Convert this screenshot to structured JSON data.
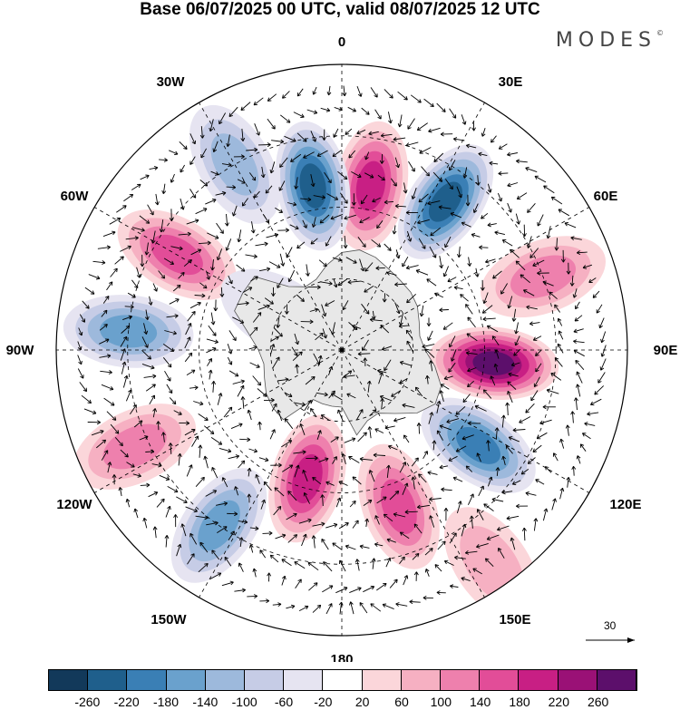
{
  "header": {
    "title": "Base 06/07/2025 00 UTC, valid 08/07/2025 12 UTC",
    "brand": "MODES",
    "brand_mark": "©"
  },
  "map": {
    "projection": "south-polar-stereographic",
    "meridian_labels": [
      "0",
      "30E",
      "60E",
      "90E",
      "120E",
      "150E",
      "180",
      "150W",
      "120W",
      "90W",
      "60W",
      "30W"
    ],
    "wind_reference_label": "30",
    "land_color": "#e8e8e8",
    "blobs": [
      {
        "lon": 10,
        "lat": -55,
        "value": 200
      },
      {
        "lon": 35,
        "lat": -52,
        "value": -240
      },
      {
        "lon": 95,
        "lat": -58,
        "value": 260
      },
      {
        "lon": 125,
        "lat": -55,
        "value": -200
      },
      {
        "lon": 160,
        "lat": -55,
        "value": 160
      },
      {
        "lon": -165,
        "lat": -62,
        "value": 180
      },
      {
        "lon": -145,
        "lat": -45,
        "value": -160
      },
      {
        "lon": -115,
        "lat": -42,
        "value": 110
      },
      {
        "lon": -85,
        "lat": -45,
        "value": -170
      },
      {
        "lon": -60,
        "lat": -50,
        "value": 150
      },
      {
        "lon": -10,
        "lat": -55,
        "value": -240
      },
      {
        "lon": -30,
        "lat": -45,
        "value": -130
      },
      {
        "lon": 70,
        "lat": -45,
        "value": 110
      },
      {
        "lon": -60,
        "lat": -75,
        "value": -80
      },
      {
        "lon": 145,
        "lat": -35,
        "value": 60
      }
    ]
  },
  "colorbar": {
    "colors": [
      "#12395a",
      "#1f5f8c",
      "#3a7fb5",
      "#6aa1cd",
      "#9db9dc",
      "#c6cce6",
      "#e6e4f1",
      "#ffffff",
      "#fbd6da",
      "#f6b0c2",
      "#ee80ad",
      "#e24d98",
      "#c81f84",
      "#9a1176",
      "#5c0f6b"
    ],
    "tick_labels": [
      "-260",
      "-220",
      "-180",
      "-140",
      "-100",
      "-60",
      "-20",
      "20",
      "60",
      "100",
      "140",
      "180",
      "220",
      "260"
    ]
  }
}
